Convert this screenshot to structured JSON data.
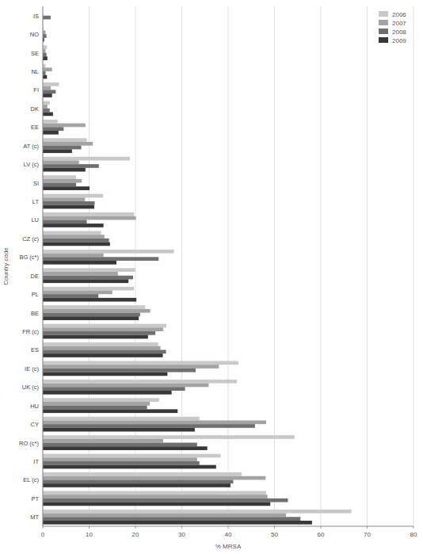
{
  "chart_data": {
    "type": "bar",
    "orientation": "horizontal",
    "x_label": "% MRSA",
    "y_label": "Country code",
    "categories": [
      "IS",
      "NO",
      "SE",
      "NL",
      "FI",
      "DK",
      "EE",
      "AT (c)",
      "LV (c)",
      "SI",
      "LT",
      "LU",
      "CZ (c)",
      "BG (c*)",
      "DE",
      "PL",
      "BE",
      "FR (c)",
      "ES",
      "IE (c)",
      "UK (c)",
      "HU",
      "CY",
      "RO (c*)",
      "IT",
      "EL (c)",
      "PT",
      "MT"
    ],
    "series": [
      {
        "name": "2006",
        "color": "#c9c9c9",
        "values": [
          0,
          0.2,
          0.9,
          0.6,
          3.5,
          1.5,
          3.2,
          9.5,
          18.8,
          7.2,
          13.0,
          19.7,
          12.6,
          28.3,
          20.0,
          19.7,
          22.1,
          26.7,
          24.9,
          42.2,
          41.9,
          25.1,
          33.8,
          54.3,
          38.4,
          42.9,
          48.2,
          66.6
        ]
      },
      {
        "name": "2007",
        "color": "#a3a3a3",
        "values": [
          0,
          0.6,
          0.6,
          2.0,
          1.7,
          1.0,
          9.2,
          10.8,
          7.8,
          8.4,
          9.1,
          20.1,
          13.3,
          13.1,
          16.2,
          15.0,
          23.2,
          26.0,
          25.4,
          38.0,
          35.8,
          23.1,
          48.2,
          26.0,
          33.3,
          48.1,
          48.5,
          52.5
        ]
      },
      {
        "name": "2008",
        "color": "#6f6f6f",
        "values": [
          1.7,
          0.8,
          0.8,
          0.6,
          2.8,
          1.5,
          4.5,
          8.3,
          12.1,
          7.2,
          11.2,
          9.5,
          14.3,
          25.0,
          19.5,
          12.0,
          21.0,
          24.3,
          26.6,
          33.0,
          30.7,
          22.5,
          45.8,
          33.3,
          33.8,
          41.1,
          52.9,
          55.6
        ]
      },
      {
        "name": "2009",
        "color": "#383838",
        "values": [
          0,
          0.3,
          1.0,
          0.9,
          2.0,
          2.2,
          3.4,
          6.3,
          9.2,
          10.1,
          11.1,
          13.1,
          14.5,
          15.9,
          18.5,
          20.2,
          20.7,
          22.7,
          25.9,
          26.9,
          27.8,
          29.1,
          32.8,
          35.5,
          37.4,
          40.5,
          49.1,
          58.1
        ]
      }
    ],
    "xlim": [
      0,
      80
    ],
    "xticks": [
      0,
      10,
      20,
      30,
      40,
      50,
      60,
      70,
      80
    ],
    "grid": true,
    "legend": "top-right"
  }
}
